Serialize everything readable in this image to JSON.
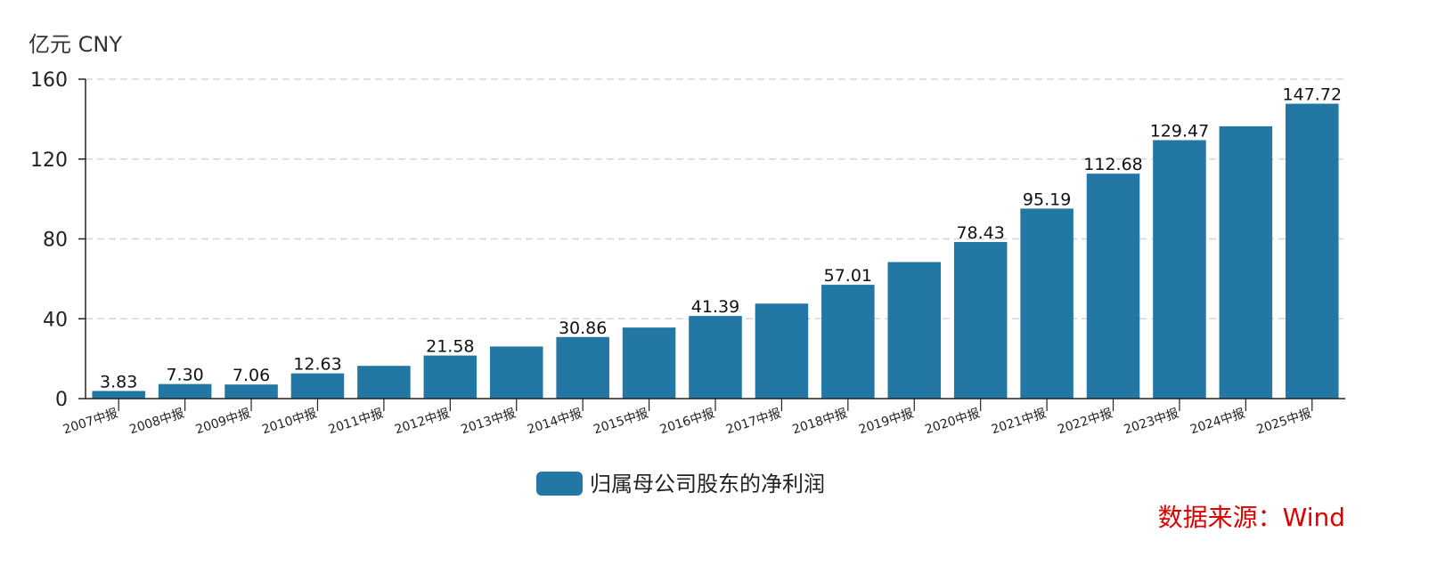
{
  "chart_data": {
    "type": "bar",
    "unit_label": "亿元  CNY",
    "categories": [
      "2007中报",
      "2008中报",
      "2009中报",
      "2010中报",
      "2011中报",
      "2012中报",
      "2013中报",
      "2014中报",
      "2015中报",
      "2016中报",
      "2017中报",
      "2018中报",
      "2019中报",
      "2020中报",
      "2021中报",
      "2022中报",
      "2023中报",
      "2024中报",
      "2025中报"
    ],
    "series": [
      {
        "name": "归属母公司股东的净利润",
        "values": [
          3.83,
          7.3,
          7.06,
          12.63,
          16.4,
          21.58,
          26.1,
          30.86,
          35.6,
          41.39,
          47.6,
          57.01,
          68.4,
          78.43,
          95.19,
          112.68,
          129.47,
          136.4,
          147.72
        ],
        "labels": [
          "3.83",
          "7.30",
          "7.06",
          "12.63",
          "",
          "21.58",
          "",
          "30.86",
          "",
          "41.39",
          "",
          "57.01",
          "",
          "78.43",
          "95.19",
          "112.68",
          "129.47",
          "",
          "147.72"
        ],
        "color": "#2277a4"
      }
    ],
    "ylim": [
      0,
      160
    ],
    "yticks": [
      "0",
      "40",
      "80",
      "120",
      "160"
    ],
    "grid": true,
    "legend_placement": "bottom",
    "source": "数据来源：Wind",
    "source_color": "#e00000"
  }
}
